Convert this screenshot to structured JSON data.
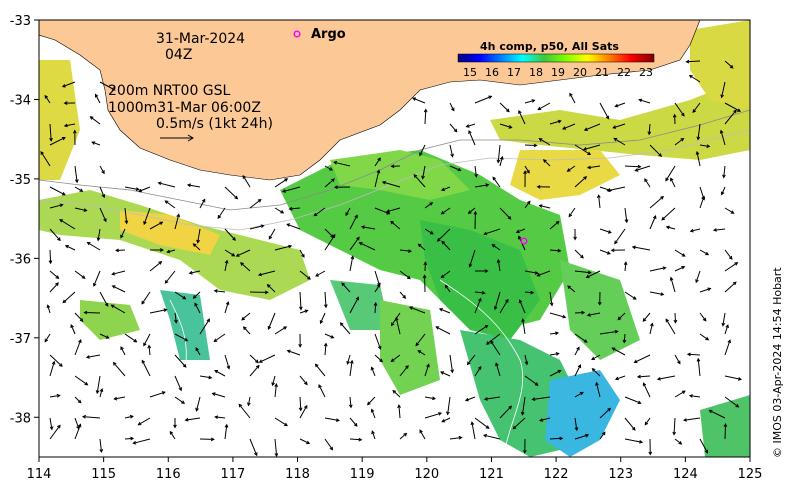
{
  "map": {
    "date_label": "31-Mar-2024",
    "time_label": "04Z",
    "model_line1": "200m  NRT00 GSL",
    "model_line2": "1000m31-Mar 06:00Z",
    "vector_scale_label": "0.5m/s (1kt 24h)",
    "argo_label": "Argo",
    "credit": "© IMOS 03-Apr-2024 14:54 Hobart",
    "lon_ticks": [
      "114",
      "115",
      "116",
      "117",
      "118",
      "119",
      "120",
      "121",
      "122",
      "123",
      "124",
      "125"
    ],
    "lat_ticks": [
      "-33",
      "-34",
      "-35",
      "-36",
      "-37",
      "-38"
    ],
    "lon_range": [
      114,
      125
    ],
    "lat_range": [
      -38.5,
      -33
    ],
    "land_color": "#fbc896",
    "argo_color": "#ff00ff"
  },
  "legend": {
    "title": "4h comp, p50, All Sats",
    "ticks": [
      "15",
      "16",
      "17",
      "18",
      "19",
      "20",
      "21",
      "22",
      "23"
    ],
    "colors": [
      "#00007f",
      "#0000ff",
      "#0080ff",
      "#00ffff",
      "#3cc83c",
      "#80ff00",
      "#ffff00",
      "#ff8000",
      "#ff0000",
      "#7f0000"
    ]
  }
}
